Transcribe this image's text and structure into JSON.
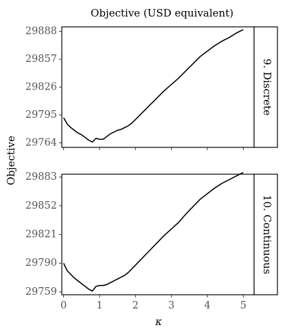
{
  "chart_data": {
    "type": "line",
    "title": "Objective (USD equivalent)",
    "xlabel": "κ",
    "ylabel": "Objective",
    "x_ticks": [
      0,
      1,
      2,
      3,
      4,
      5
    ],
    "xlim": [
      -0.05,
      5.3
    ],
    "grid": false,
    "panels": [
      {
        "strip_label": "9. Discrete",
        "ylim": [
          29759,
          29893
        ],
        "y_ticks": [
          29764,
          29795,
          29826,
          29857,
          29888
        ],
        "x": [
          0.0,
          0.1,
          0.2,
          0.3,
          0.4,
          0.5,
          0.6,
          0.7,
          0.8,
          0.9,
          1.0,
          1.1,
          1.2,
          1.3,
          1.4,
          1.5,
          1.6,
          1.7,
          1.8,
          1.9,
          2.0,
          2.2,
          2.4,
          2.6,
          2.8,
          3.0,
          3.2,
          3.4,
          3.6,
          3.8,
          4.0,
          4.2,
          4.4,
          4.6,
          4.8,
          5.0
        ],
        "values": [
          29792,
          29785,
          29781,
          29778,
          29775,
          29773,
          29770,
          29767,
          29765,
          29769,
          29768,
          29768,
          29771,
          29774,
          29776,
          29778,
          29779,
          29781,
          29783,
          29786,
          29790,
          29798,
          29806,
          29814,
          29822,
          29829,
          29836,
          29844,
          29852,
          29860,
          29866,
          29872,
          29877,
          29881,
          29886,
          29890
        ]
      },
      {
        "strip_label": "10. Continuous",
        "ylim": [
          29756,
          29886
        ],
        "y_ticks": [
          29759,
          29790,
          29821,
          29852,
          29883
        ],
        "x": [
          0.0,
          0.1,
          0.2,
          0.3,
          0.4,
          0.5,
          0.6,
          0.7,
          0.8,
          0.9,
          1.0,
          1.1,
          1.2,
          1.3,
          1.4,
          1.5,
          1.6,
          1.7,
          1.8,
          1.9,
          2.0,
          2.2,
          2.4,
          2.6,
          2.8,
          3.0,
          3.2,
          3.4,
          3.6,
          3.8,
          4.0,
          4.2,
          4.4,
          4.6,
          4.8,
          5.0
        ],
        "values": [
          29790,
          29782,
          29778,
          29774,
          29771,
          29768,
          29765,
          29762,
          29760,
          29765,
          29766,
          29766,
          29767,
          29769,
          29771,
          29773,
          29775,
          29777,
          29780,
          29784,
          29788,
          29796,
          29804,
          29812,
          29820,
          29827,
          29834,
          29843,
          29851,
          29859,
          29865,
          29871,
          29876,
          29880,
          29884,
          29888
        ]
      }
    ]
  }
}
